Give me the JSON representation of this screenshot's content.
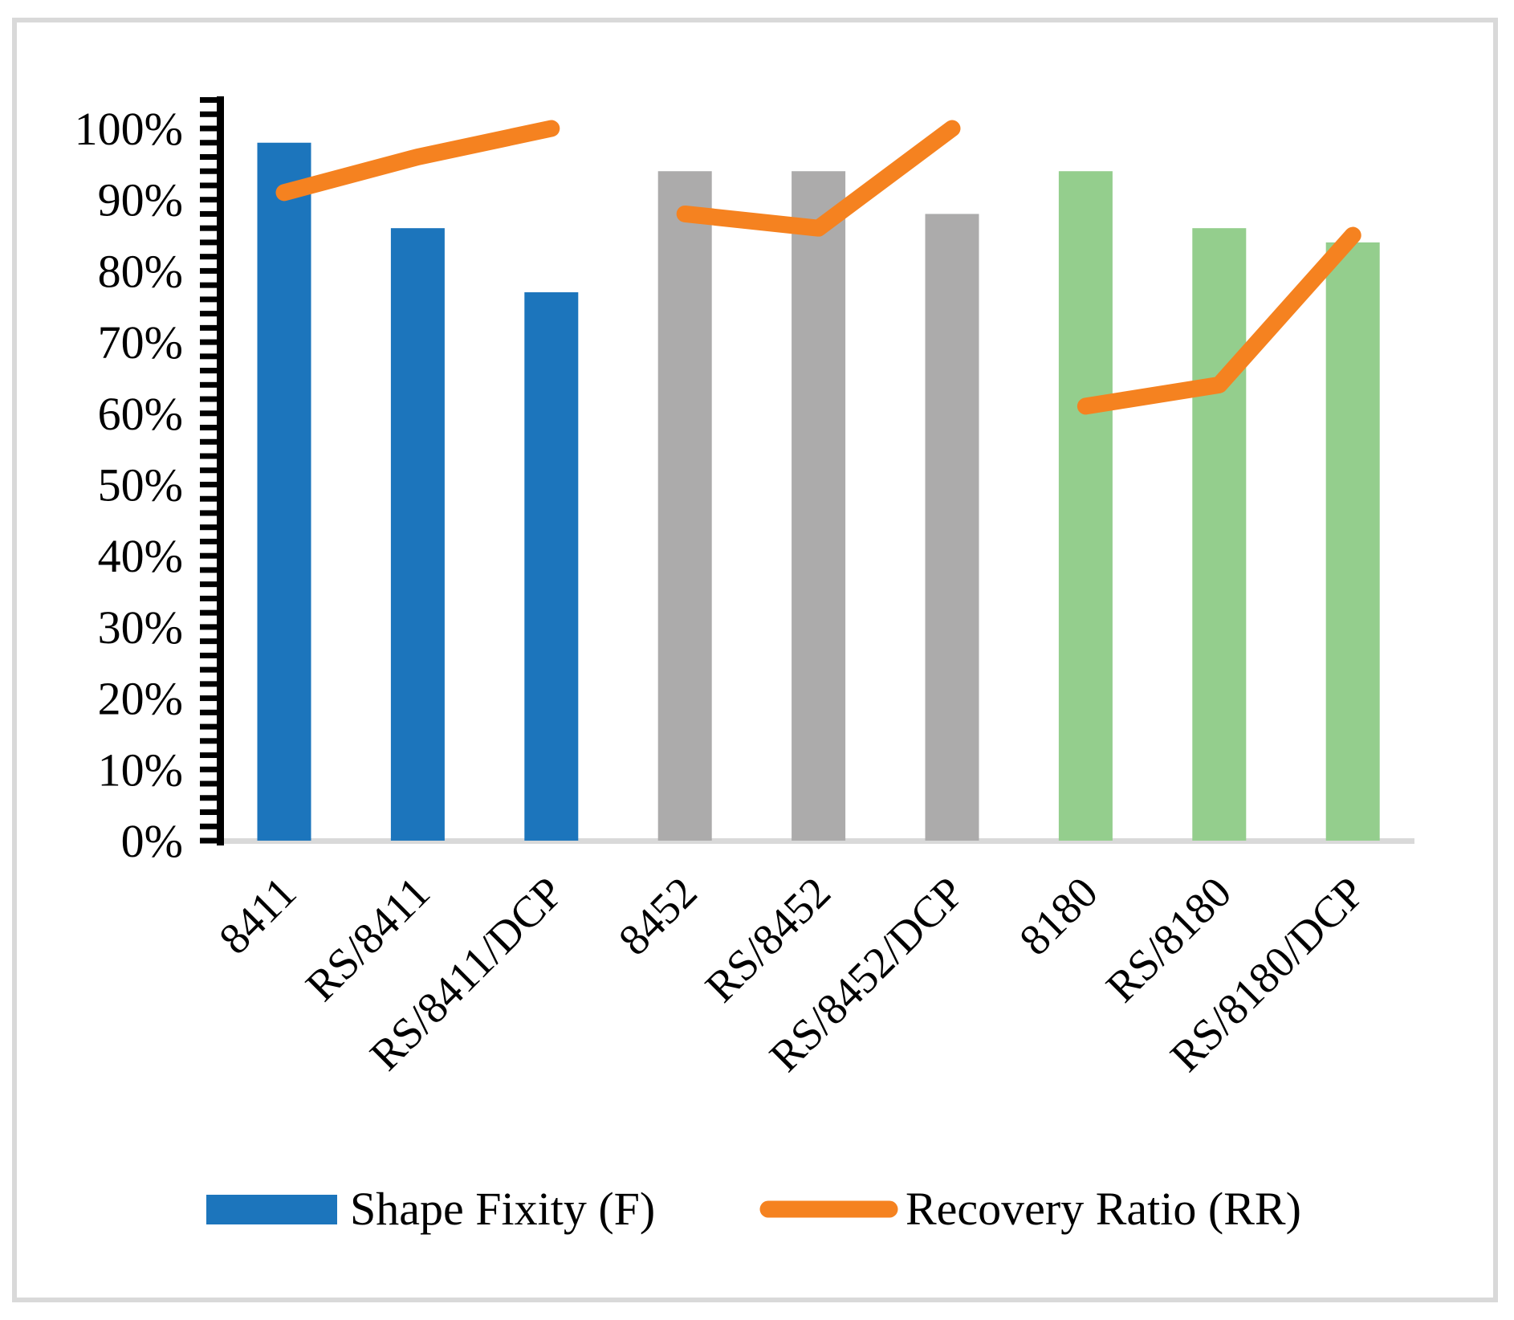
{
  "legend": {
    "bar_label": "Shape Fixity (F)",
    "line_label": "Recovery Ratio (RR)",
    "bar_color": "#1C75BC",
    "line_color": "#F58220"
  },
  "chart_data": {
    "type": "bar+line",
    "title": "",
    "xlabel": "",
    "ylabel": "",
    "categories": [
      "8411",
      "RS/8411",
      "RS/8411/DCP",
      "8452",
      "RS/8452",
      "RS/8452/DCP",
      "8180",
      "RS/8180",
      "RS/8180/DCP"
    ],
    "series": [
      {
        "name": "Shape Fixity (F)",
        "type": "bar",
        "values_pct": [
          98,
          86,
          77,
          94,
          94,
          88,
          94,
          86,
          84
        ]
      },
      {
        "name": "Recovery Ratio (RR)",
        "type": "line",
        "values_pct": [
          91,
          96,
          100,
          88,
          86,
          100,
          61,
          64,
          85
        ],
        "color": "#F58220",
        "segments": [
          [
            0,
            1,
            2
          ],
          [
            3,
            4,
            5
          ],
          [
            6,
            7,
            8
          ]
        ]
      }
    ],
    "bar_groups": [
      [
        0,
        1,
        2
      ],
      [
        3,
        4,
        5
      ],
      [
        6,
        7,
        8
      ]
    ],
    "bar_group_colors": [
      "#1C75BC",
      "#ACABAB",
      "#94CE8D"
    ],
    "y_axis": {
      "min": 0,
      "max": 104,
      "minor_tick_step": 2,
      "label_step": 10,
      "tick_labels": [
        "0%",
        "10%",
        "20%",
        "30%",
        "40%",
        "50%",
        "60%",
        "70%",
        "80%",
        "90%",
        "100%"
      ]
    },
    "grid": false,
    "legend_position": "bottom",
    "border_color": "#D9D9D9",
    "baseline_color": "#D9D9D9",
    "axis_color": "#000000"
  }
}
